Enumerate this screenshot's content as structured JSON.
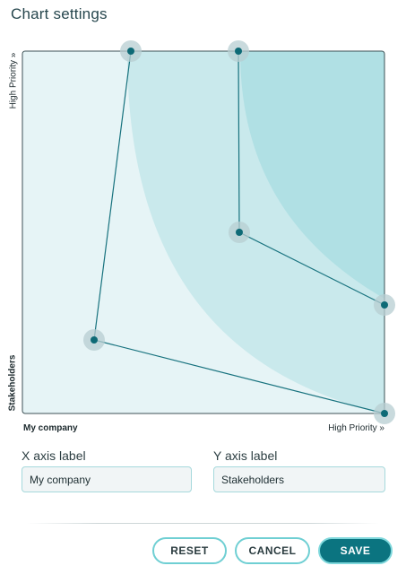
{
  "dialog": {
    "title": "Chart settings"
  },
  "chart": {
    "y_axis_top_label": "High Priority »",
    "y_axis_bottom_label": "Stakeholders",
    "x_axis_left_label": "My company",
    "x_axis_right_label": "High Priority »",
    "colors": {
      "background": "#e6f4f6",
      "zone_mid": "#c9e9ec",
      "zone_high": "#b0e0e4",
      "line": "#17727e",
      "point": "#0e6a76",
      "halo": "#b7cdd1",
      "border": "#3c5155"
    }
  },
  "form": {
    "x_axis": {
      "label": "X axis label",
      "value": "My company",
      "placeholder": ""
    },
    "y_axis": {
      "label": "Y axis label",
      "value": "Stakeholders",
      "placeholder": ""
    }
  },
  "actions": {
    "reset_label": "RESET",
    "cancel_label": "CANCEL",
    "save_label": "SAVE"
  }
}
